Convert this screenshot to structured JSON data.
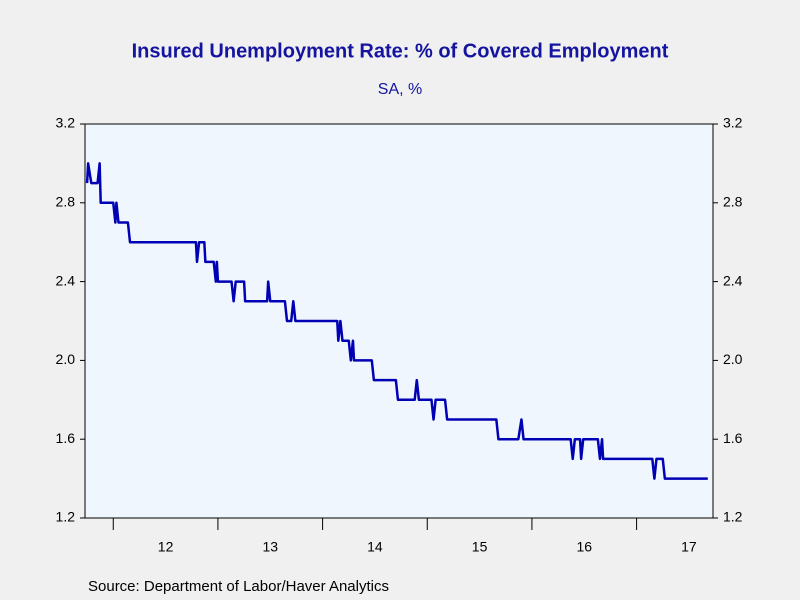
{
  "chart_data": {
    "type": "line",
    "title": "Insured Unemployment Rate: % of Covered Employment",
    "subtitle": "SA, %",
    "source": "Source:  Department of Labor/Haver Analytics",
    "series": [
      {
        "color": "#0000b4",
        "x": [
          2011.75,
          2011.76,
          2011.79,
          2011.85,
          2011.87,
          2011.88,
          2012.0,
          2012.02,
          2012.03,
          2012.05,
          2012.14,
          2012.16,
          2012.79,
          2012.8,
          2012.82,
          2012.87,
          2012.88,
          2012.96,
          2012.98,
          2012.99,
          2013.0,
          2013.13,
          2013.15,
          2013.17,
          2013.25,
          2013.26,
          2013.47,
          2013.48,
          2013.5,
          2013.64,
          2013.66,
          2013.7,
          2013.72,
          2013.74,
          2014.14,
          2014.15,
          2014.17,
          2014.19,
          2014.25,
          2014.27,
          2014.29,
          2014.3,
          2014.47,
          2014.49,
          2014.7,
          2014.72,
          2014.88,
          2014.9,
          2014.92,
          2015.04,
          2015.06,
          2015.08,
          2015.17,
          2015.19,
          2015.66,
          2015.68,
          2015.87,
          2015.9,
          2015.92,
          2016.37,
          2016.39,
          2016.41,
          2016.46,
          2016.47,
          2016.49,
          2016.63,
          2016.65,
          2016.67,
          2016.68,
          2017.15,
          2017.17,
          2017.19,
          2017.25,
          2017.27,
          2017.68
        ],
        "values": [
          2.9,
          3.0,
          2.9,
          2.9,
          3.0,
          2.8,
          2.8,
          2.7,
          2.8,
          2.7,
          2.7,
          2.6,
          2.6,
          2.5,
          2.6,
          2.6,
          2.5,
          2.5,
          2.4,
          2.5,
          2.4,
          2.4,
          2.3,
          2.4,
          2.4,
          2.3,
          2.3,
          2.4,
          2.3,
          2.3,
          2.2,
          2.2,
          2.3,
          2.2,
          2.2,
          2.1,
          2.2,
          2.1,
          2.1,
          2.0,
          2.1,
          2.0,
          2.0,
          1.9,
          1.9,
          1.8,
          1.8,
          1.9,
          1.8,
          1.8,
          1.7,
          1.8,
          1.8,
          1.7,
          1.7,
          1.6,
          1.6,
          1.7,
          1.6,
          1.6,
          1.5,
          1.6,
          1.6,
          1.5,
          1.6,
          1.6,
          1.5,
          1.6,
          1.5,
          1.5,
          1.4,
          1.5,
          1.5,
          1.4,
          1.4
        ]
      }
    ],
    "xlim": [
      2011.73,
      2017.73
    ],
    "xticks": [
      {
        "value": 2012.5,
        "label": "12"
      },
      {
        "value": 2013.5,
        "label": "13"
      },
      {
        "value": 2014.5,
        "label": "14"
      },
      {
        "value": 2015.5,
        "label": "15"
      },
      {
        "value": 2016.5,
        "label": "16"
      },
      {
        "value": 2017.5,
        "label": "17"
      }
    ],
    "xtick_marks": [
      2012,
      2013,
      2014,
      2015,
      2016,
      2017
    ],
    "ylim": [
      1.2,
      3.2
    ],
    "yticks": [
      {
        "value": 1.2,
        "label": "1.2"
      },
      {
        "value": 1.6,
        "label": "1.6"
      },
      {
        "value": 2.0,
        "label": "2.0"
      },
      {
        "value": 2.4,
        "label": "2.4"
      },
      {
        "value": 2.8,
        "label": "2.8"
      },
      {
        "value": 3.2,
        "label": "3.2"
      }
    ],
    "y2lim": [
      1.2,
      3.2
    ],
    "y2ticks": [
      {
        "value": 1.2,
        "label": "1.2"
      },
      {
        "value": 1.6,
        "label": "1.6"
      },
      {
        "value": 2.0,
        "label": "2.0"
      },
      {
        "value": 2.4,
        "label": "2.4"
      },
      {
        "value": 2.8,
        "label": "2.8"
      },
      {
        "value": 3.2,
        "label": "3.2"
      }
    ]
  }
}
